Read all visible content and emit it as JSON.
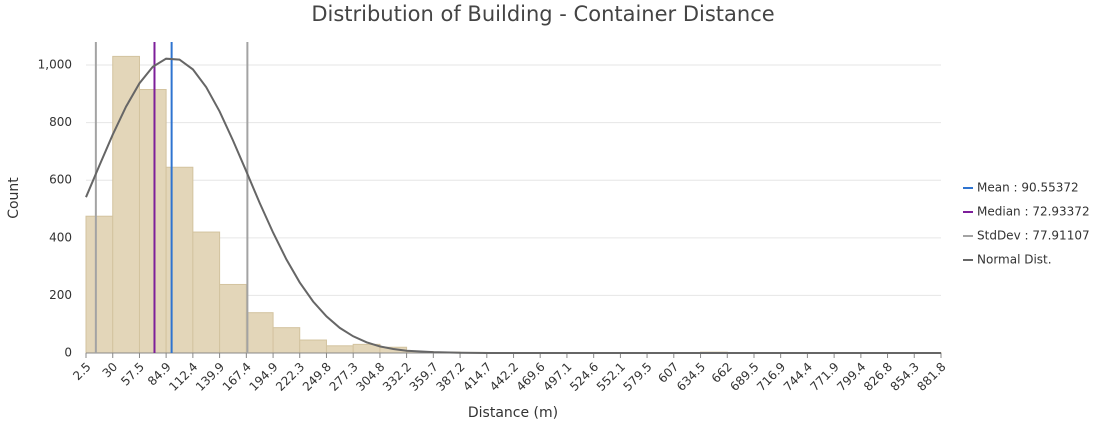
{
  "chart_data": {
    "type": "histogram",
    "title": "Distribution of Building - Container Distance",
    "x_label": "Distance (m)",
    "y_label": "Count",
    "bins": [
      2.5,
      30,
      57.5,
      84.9,
      112.4,
      139.9,
      167.4,
      194.9,
      222.3,
      249.8,
      277.3,
      304.8,
      332.2,
      359.7,
      387.2,
      414.7,
      442.2,
      469.6,
      497.1,
      524.6,
      552.1,
      579.5,
      607,
      634.5,
      662,
      689.5,
      716.9,
      744.4,
      771.9,
      799.4,
      826.8,
      854.3,
      881.8
    ],
    "values": [
      475,
      1030,
      915,
      645,
      420,
      238,
      140,
      88,
      45,
      25,
      30,
      20,
      5,
      3,
      2,
      1,
      1,
      1,
      1,
      1,
      1,
      1,
      1,
      3,
      1,
      1,
      1,
      1,
      1,
      1,
      1,
      1
    ],
    "color": "#e3d6b9",
    "edgecolor": "#d3c39f",
    "xlim": [
      2.5,
      881.8
    ],
    "ylim": [
      0,
      1080
    ],
    "yticks": [
      0,
      200,
      400,
      600,
      800,
      {
        "value": 1000,
        "label": "1,000"
      }
    ],
    "grid": true,
    "reference_lines": [
      {
        "name": "Mean : 90.55372",
        "value": 90.55372,
        "color": "#2f74d0"
      },
      {
        "name": "Median : 72.93372",
        "value": 72.93372,
        "color": "#7d1f9a"
      },
      {
        "name": "StdDev : 77.91107",
        "value": 77.91107,
        "color": "#a3a3a3"
      }
    ],
    "normal_curve": {
      "name": "Normal Dist.",
      "color": "#666666",
      "x": [
        2.5,
        16.25,
        30,
        43.75,
        57.5,
        71.2,
        84.9,
        98.65,
        112.4,
        126.15,
        139.9,
        153.65,
        167.4,
        181.15,
        194.9,
        208.6,
        222.3,
        236.05,
        249.8,
        263.55,
        277.3,
        291.05,
        304.8,
        318.5,
        332.2,
        359.7,
        387.2,
        414.7,
        881.8
      ],
      "values": [
        541,
        651,
        758,
        856,
        937,
        994,
        1022,
        1019,
        985,
        923,
        839,
        738,
        631,
        521,
        418,
        325,
        245,
        179,
        127,
        87,
        58,
        37,
        23,
        14,
        8,
        3,
        1,
        0,
        0
      ]
    }
  }
}
